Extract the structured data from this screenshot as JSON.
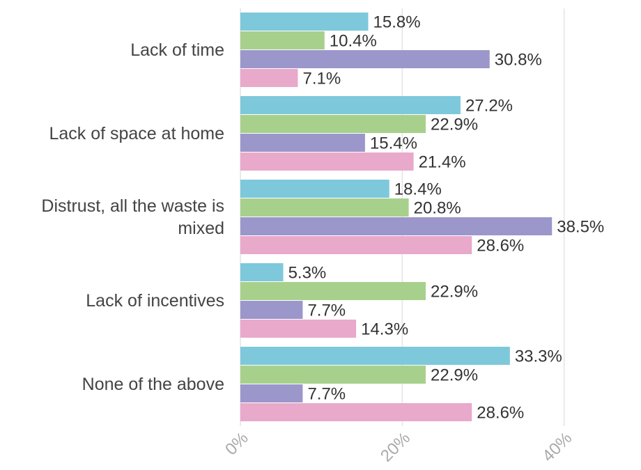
{
  "chart_data": {
    "type": "bar",
    "orientation": "horizontal",
    "categories": [
      "Lack of time",
      "Lack of space at home",
      "Distrust, all the waste is mixed",
      "Lack of incentives",
      "None of the above"
    ],
    "series": [
      {
        "color": "#7ec8dc",
        "values": [
          15.8,
          27.2,
          18.4,
          5.3,
          33.3
        ],
        "value_labels": [
          "15.8%",
          "27.2%",
          "18.4%",
          "5.3%",
          "33.3%"
        ]
      },
      {
        "color": "#a8d08d",
        "values": [
          10.4,
          22.9,
          20.8,
          22.9,
          22.9
        ],
        "value_labels": [
          "10.4%",
          "22.9%",
          "20.8%",
          "22.9%",
          "22.9%"
        ]
      },
      {
        "color": "#9b97cb",
        "values": [
          30.8,
          15.4,
          38.5,
          7.7,
          7.7
        ],
        "value_labels": [
          "30.8%",
          "15.4%",
          "38.5%",
          "7.7%",
          "7.7%"
        ]
      },
      {
        "color": "#e8a9cb",
        "values": [
          7.1,
          21.4,
          28.6,
          14.3,
          28.6
        ],
        "value_labels": [
          "7.1%",
          "21.4%",
          "28.6%",
          "14.3%",
          "28.6%"
        ]
      }
    ],
    "xlim": [
      0,
      49.5
    ],
    "xticks": [
      {
        "value": 0,
        "label": "0%"
      },
      {
        "value": 20,
        "label": "20%"
      },
      {
        "value": 40,
        "label": "40%"
      }
    ],
    "grid": true
  }
}
